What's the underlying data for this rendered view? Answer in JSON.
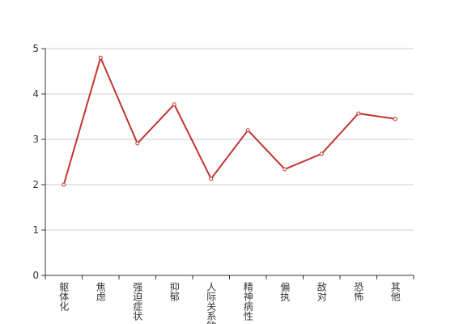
{
  "chart_data": {
    "type": "line",
    "categories": [
      "躯体化",
      "焦虑",
      "强迫症状",
      "抑郁",
      "人际关系敏感",
      "精神病性",
      "偏执",
      "敌对",
      "恐怖",
      "其他"
    ],
    "series": [
      {
        "color": "#c23531",
        "values": [
          2.0,
          4.8,
          2.91,
          3.77,
          2.13,
          3.2,
          2.34,
          2.68,
          3.57,
          3.45
        ]
      }
    ],
    "ylim": [
      0,
      5
    ],
    "yticks": [
      0,
      1,
      2,
      3,
      4,
      5
    ],
    "grid": true
  }
}
